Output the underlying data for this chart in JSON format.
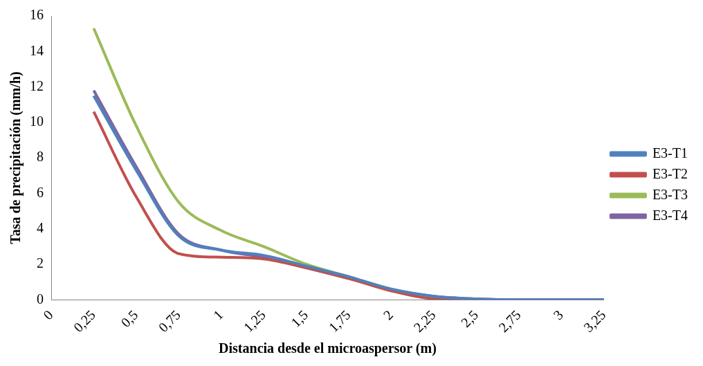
{
  "chart_data": {
    "type": "line",
    "xlabel": "Distancia desde el microaspersor (m)",
    "ylabel": "Tasa de precipitación (mm/h)",
    "categories": [
      "0",
      "0,25",
      "0,5",
      "0,75",
      "1",
      "1,25",
      "1,5",
      "1,75",
      "2",
      "2,25",
      "2,5",
      "2,75",
      "3",
      "3,25"
    ],
    "series": [
      {
        "name": "E3-T1",
        "color": "#4f81bd",
        "values": [
          null,
          11.5,
          7.3,
          3.6,
          2.8,
          2.5,
          1.9,
          1.3,
          0.6,
          0.2,
          0.05,
          0,
          0,
          0
        ]
      },
      {
        "name": "E3-T2",
        "color": "#c0504d",
        "values": [
          null,
          10.6,
          5.8,
          2.6,
          2.4,
          2.3,
          1.8,
          1.2,
          0.5,
          0.05,
          0,
          null,
          null,
          null
        ]
      },
      {
        "name": "E3-T3",
        "color": "#9bbb59",
        "values": [
          null,
          15.3,
          9.8,
          5.5,
          3.9,
          3.0,
          2.0,
          1.3,
          0.6,
          0.1,
          null,
          null,
          null,
          null
        ]
      },
      {
        "name": "E3-T4",
        "color": "#8064a2",
        "values": [
          null,
          11.8,
          7.5,
          3.7,
          2.8,
          2.4,
          1.8,
          1.2,
          0.6,
          0.2,
          0.05,
          0,
          0,
          0
        ]
      }
    ],
    "ylim": [
      0,
      16
    ],
    "yticks": [
      0,
      2,
      4,
      6,
      8,
      10,
      12,
      14,
      16
    ],
    "grid": false,
    "legend": "right",
    "marker": "none"
  }
}
